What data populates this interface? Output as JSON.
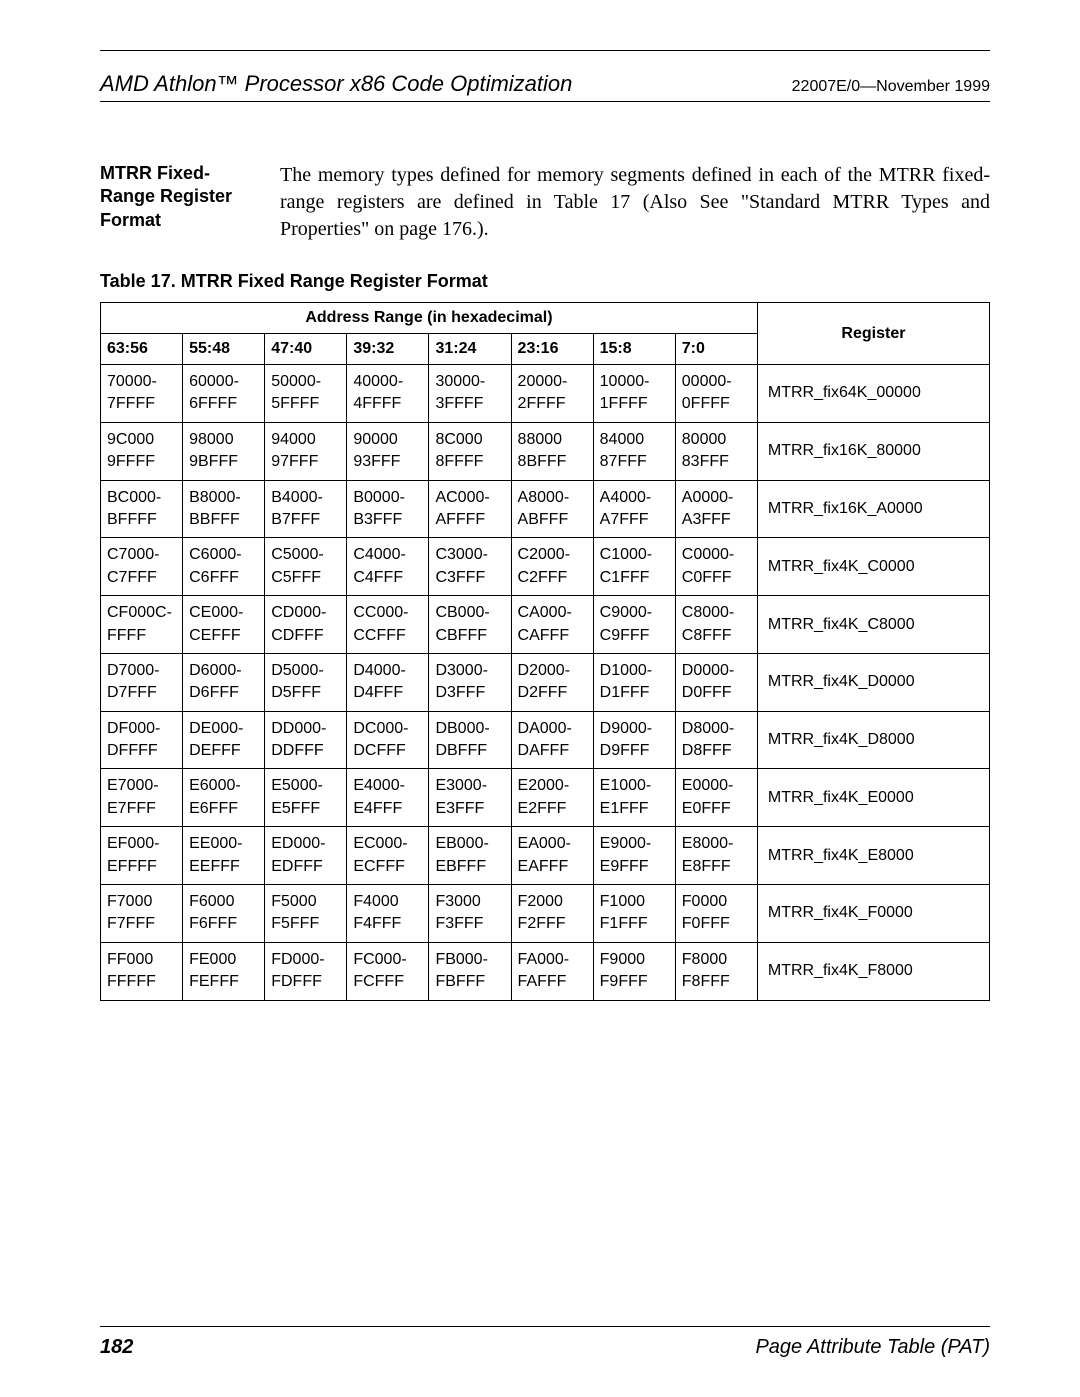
{
  "header": {
    "doc_title": "AMD Athlon™ Processor x86 Code Optimization",
    "doc_id": "22007E/0—November 1999"
  },
  "section": {
    "heading": "MTRR Fixed-Range Register Format",
    "body": "The memory types defined for memory segments defined in each of the MTRR fixed-range registers are defined in Table 17 (Also See \"Standard MTRR Types and Properties\" on page 176.)."
  },
  "table": {
    "caption": "Table 17.   MTRR Fixed Range Register Format",
    "addr_range_label": "Address Range (in hexadecimal)",
    "register_label": "Register",
    "col_headers": [
      "63:56",
      "55:48",
      "47:40",
      "39:32",
      "31:24",
      "23:16",
      "15:8",
      "7:0"
    ],
    "rows": [
      {
        "cells": [
          "70000-\n7FFFF",
          "60000-\n6FFFF",
          "50000-\n5FFFF",
          "40000-\n4FFFF",
          "30000-\n3FFFF",
          "20000-\n2FFFF",
          "10000-\n1FFFF",
          "00000-\n0FFFF"
        ],
        "register": "MTRR_fix64K_00000"
      },
      {
        "cells": [
          "9C000\n9FFFF",
          "98000\n9BFFF",
          "94000\n97FFF",
          "90000\n93FFF",
          "8C000\n8FFFF",
          "88000\n8BFFF",
          "84000\n87FFF",
          "80000\n83FFF"
        ],
        "register": "MTRR_fix16K_80000"
      },
      {
        "cells": [
          "BC000-\nBFFFF",
          "B8000-\nBBFFF",
          "B4000-\nB7FFF",
          "B0000-\nB3FFF",
          "AC000-\nAFFFF",
          "A8000-\nABFFF",
          "A4000-\nA7FFF",
          "A0000-\nA3FFF"
        ],
        "register": "MTRR_fix16K_A0000"
      },
      {
        "cells": [
          "C7000-\nC7FFF",
          "C6000-\nC6FFF",
          "C5000-\nC5FFF",
          "C4000-\nC4FFF",
          "C3000-\nC3FFF",
          "C2000-\nC2FFF",
          "C1000-\nC1FFF",
          "C0000-\nC0FFF"
        ],
        "register": "MTRR_fix4K_C0000"
      },
      {
        "cells": [
          "CF000C-\nFFFF",
          "CE000-\nCEFFF",
          "CD000-\nCDFFF",
          "CC000-\nCCFFF",
          "CB000-\nCBFFF",
          "CA000-\nCAFFF",
          "C9000-\nC9FFF",
          "C8000-\nC8FFF"
        ],
        "register": "MTRR_fix4K_C8000"
      },
      {
        "cells": [
          "D7000-\nD7FFF",
          "D6000-\nD6FFF",
          "D5000-\nD5FFF",
          "D4000-\nD4FFF",
          "D3000-\nD3FFF",
          "D2000-\nD2FFF",
          "D1000-\nD1FFF",
          "D0000-\nD0FFF"
        ],
        "register": "MTRR_fix4K_D0000"
      },
      {
        "cells": [
          "DF000-\nDFFFF",
          "DE000-\nDEFFF",
          "DD000-\nDDFFF",
          "DC000-\nDCFFF",
          "DB000-\nDBFFF",
          "DA000-\nDAFFF",
          "D9000-\nD9FFF",
          "D8000-\nD8FFF"
        ],
        "register": "MTRR_fix4K_D8000"
      },
      {
        "cells": [
          "E7000-\nE7FFF",
          "E6000-\nE6FFF",
          "E5000-\nE5FFF",
          "E4000-\nE4FFF",
          "E3000-\nE3FFF",
          "E2000-\nE2FFF",
          "E1000-\nE1FFF",
          "E0000-\nE0FFF"
        ],
        "register": "MTRR_fix4K_E0000"
      },
      {
        "cells": [
          "EF000-\nEFFFF",
          "EE000-\nEEFFF",
          "ED000-\nEDFFF",
          "EC000-\nECFFF",
          "EB000-\nEBFFF",
          "EA000-\nEAFFF",
          "E9000-\nE9FFF",
          "E8000-\nE8FFF"
        ],
        "register": "MTRR_fix4K_E8000"
      },
      {
        "cells": [
          "F7000\nF7FFF",
          "F6000\nF6FFF",
          "F5000\nF5FFF",
          "F4000\nF4FFF",
          "F3000\nF3FFF",
          "F2000\nF2FFF",
          "F1000\nF1FFF",
          "F0000\nF0FFF"
        ],
        "register": "MTRR_fix4K_F0000"
      },
      {
        "cells": [
          "FF000\nFFFFF",
          "FE000\nFEFFF",
          "FD000-\nFDFFF",
          "FC000-\nFCFFF",
          "FB000-\nFBFFF",
          "FA000-\nFAFFF",
          "F9000\nF9FFF",
          "F8000\nF8FFF"
        ],
        "register": "MTRR_fix4K_F8000"
      }
    ]
  },
  "footer": {
    "page_num": "182",
    "title": "Page Attribute Table (PAT)"
  }
}
